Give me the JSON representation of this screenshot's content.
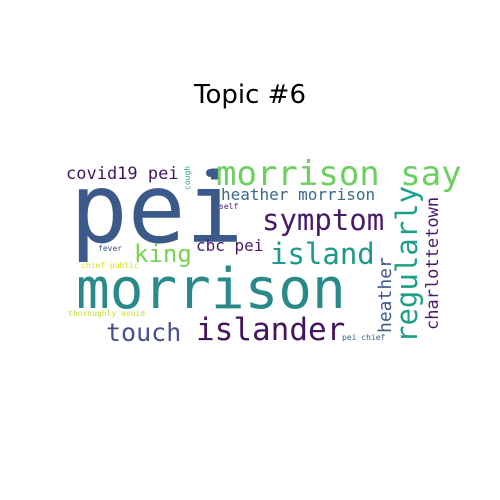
{
  "title": "Topic #6",
  "words": [
    {
      "text": "pei",
      "color": "#3b5a8a"
    },
    {
      "text": "morrison",
      "color": "#2a8a8a"
    },
    {
      "text": "morrison say",
      "color": "#6ccf5f"
    },
    {
      "text": "symptom",
      "color": "#4a1a6a"
    },
    {
      "text": "island",
      "color": "#1e9a8a"
    },
    {
      "text": "islander",
      "color": "#45155c"
    },
    {
      "text": "regularly",
      "color": "#1f9e89"
    },
    {
      "text": "touch",
      "color": "#4a4f8e"
    },
    {
      "text": "king",
      "color": "#7ad151"
    },
    {
      "text": "covid19 pei",
      "color": "#45155c"
    },
    {
      "text": "heather morrison",
      "color": "#3a6a8a"
    },
    {
      "text": "cbc pei",
      "color": "#4a1a6a"
    },
    {
      "text": "heather",
      "color": "#3b5a8a"
    },
    {
      "text": "charlottetown",
      "color": "#4a1a6a"
    },
    {
      "text": "cough",
      "color": "#2fb47c"
    },
    {
      "text": "self",
      "color": "#4a1a6a"
    },
    {
      "text": "fever",
      "color": "#3b5a8a"
    },
    {
      "text": "chief public",
      "color": "#dde318"
    },
    {
      "text": "thoroughly avoid",
      "color": "#c2df23"
    },
    {
      "text": "pei chief",
      "color": "#3b5a8a"
    }
  ]
}
